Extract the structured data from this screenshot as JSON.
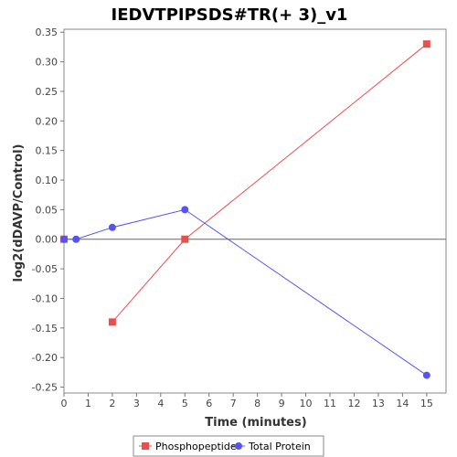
{
  "chart_data": {
    "type": "line",
    "title": "IEDVTPIPSDS#TR(+ 3)_v1",
    "xlabel": "Time (minutes)",
    "ylabel": "log2(dDAVP/Control)",
    "xlim": [
      0,
      15.8
    ],
    "ylim": [
      -0.26,
      0.355
    ],
    "xticks": [
      0,
      1,
      2,
      3,
      4,
      5,
      6,
      7,
      8,
      9,
      10,
      11,
      12,
      13,
      14,
      15
    ],
    "yticks": [
      0.35,
      0.3,
      0.25,
      0.2,
      0.15,
      0.1,
      0.05,
      0.0,
      -0.05,
      -0.1,
      -0.15,
      -0.2,
      -0.25
    ],
    "ytick_labels": [
      "0.35",
      "0.30",
      "0.25",
      "0.20",
      "0.15",
      "0.10",
      "0.05",
      "0.00",
      "-0.05",
      "-0.10",
      "-0.15",
      "-0.20",
      "-0.25"
    ],
    "grid": false,
    "zero_line": true,
    "legend_position": "bottom",
    "series": [
      {
        "name": "Phosphopeptide",
        "color": "#e8504f",
        "marker": "square",
        "isolated_points": [
          {
            "x": 0,
            "y": 0.0
          }
        ],
        "x": [
          2,
          5,
          15
        ],
        "y": [
          -0.14,
          0.0,
          0.33
        ]
      },
      {
        "name": "Total Protein",
        "color": "#5555ee",
        "marker": "circle",
        "isolated_points": [],
        "x": [
          0,
          0.5,
          2,
          5,
          15
        ],
        "y": [
          0.0,
          0.0,
          0.02,
          0.05,
          -0.23
        ]
      }
    ]
  }
}
